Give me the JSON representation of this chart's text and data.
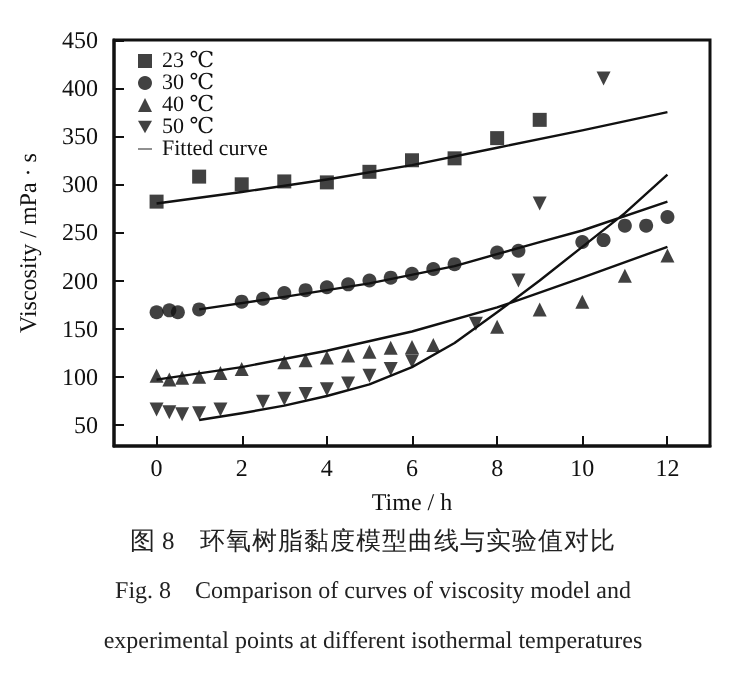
{
  "chart_data": {
    "type": "scatter",
    "xlabel": "Time / h",
    "ylabel": "Viscosity / mPa · s",
    "xlim": [
      -1,
      13
    ],
    "xticks": [
      0,
      2,
      4,
      6,
      8,
      10,
      12
    ],
    "ylim": [
      28,
      450
    ],
    "yticks": [
      50,
      100,
      150,
      200,
      250,
      300,
      350,
      400,
      450
    ],
    "legend": "top left",
    "grid": false,
    "annotations": [
      "图 8　环氧树脂黏度模型曲线与实验值对比",
      "Fig. 8　Comparison of curves of viscosity model and",
      "experimental points at different isothermal temperatures"
    ],
    "series": [
      {
        "name": "23 ℃",
        "marker": "square",
        "color": "#111111",
        "x": [
          0,
          1,
          2,
          3,
          4,
          5,
          6,
          7,
          8,
          9
        ],
        "values": [
          282,
          308,
          300,
          303,
          302,
          313,
          325,
          327,
          348,
          367
        ]
      },
      {
        "name": "30 ℃",
        "marker": "circle",
        "color": "#111111",
        "x": [
          0,
          0.3,
          0.5,
          1,
          2,
          2.5,
          3,
          3.5,
          4,
          4.5,
          5,
          5.5,
          6,
          6.5,
          7,
          8,
          8.5,
          10,
          10.5,
          11,
          11.5,
          12
        ],
        "values": [
          167,
          169,
          167,
          170,
          178,
          181,
          187,
          190,
          193,
          196,
          200,
          203,
          207,
          212,
          217,
          229,
          231,
          240,
          242,
          257,
          257,
          266
        ]
      },
      {
        "name": "40 ℃",
        "marker": "triangle",
        "color": "#111111",
        "x": [
          0,
          0.3,
          0.6,
          1,
          1.5,
          2,
          3,
          3.5,
          4,
          4.5,
          5,
          5.5,
          6,
          6.5,
          8,
          9,
          10,
          11,
          12
        ],
        "values": [
          101,
          97,
          99,
          100,
          104,
          108,
          115,
          117,
          120,
          122,
          126,
          130,
          131,
          133,
          152,
          170,
          178,
          205,
          226
        ]
      },
      {
        "name": "50 ℃",
        "marker": "triangle-down",
        "color": "#111111",
        "x": [
          0,
          0.3,
          0.6,
          1,
          1.5,
          2.5,
          3,
          3.5,
          4,
          4.5,
          5,
          5.5,
          6,
          6.5,
          7.5,
          8.5,
          9,
          10.5
        ],
        "values": [
          66,
          63,
          61,
          62,
          66,
          74,
          77,
          82,
          87,
          93,
          101,
          108,
          116,
          null,
          155,
          200,
          280,
          410
        ]
      },
      {
        "name": "Fitted curve",
        "type": "line",
        "marker": "none",
        "line_style": "solid",
        "color": "#111111",
        "x": [
          0,
          2,
          4,
          6,
          8,
          10,
          12,
          null,
          1,
          3,
          5,
          7,
          9,
          10,
          12,
          null,
          0,
          2,
          4,
          6,
          8,
          10,
          12,
          null,
          1,
          2,
          3,
          4,
          5,
          6,
          7,
          8,
          9,
          10,
          11,
          12
        ],
        "values": [
          280,
          292,
          305,
          320,
          338,
          356,
          375,
          null,
          170,
          183,
          197,
          215,
          240,
          252,
          282,
          null,
          97,
          110,
          127,
          147,
          172,
          203,
          235,
          null,
          55,
          62,
          70,
          80,
          92,
          110,
          135,
          167,
          200,
          235,
          270,
          310
        ]
      }
    ]
  }
}
